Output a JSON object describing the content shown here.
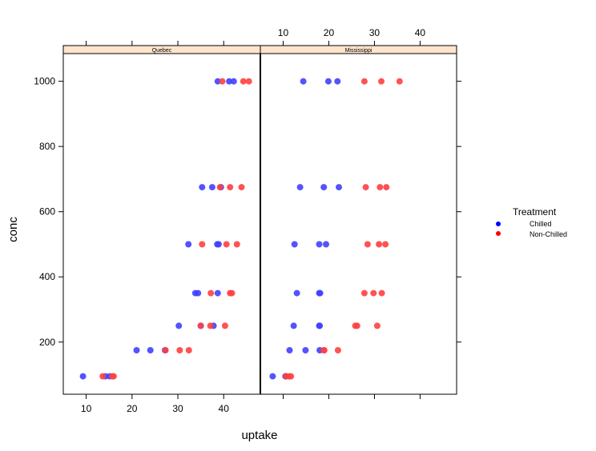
{
  "chart_data": {
    "type": "scatter",
    "xlabel": "uptake",
    "ylabel": "conc",
    "xlim": [
      5,
      48
    ],
    "ylim": [
      40,
      1085
    ],
    "x_ticks": [
      10,
      20,
      30,
      40
    ],
    "y_ticks": [
      200,
      400,
      600,
      800,
      1000
    ],
    "legend": {
      "title": "Treatment",
      "position": "right",
      "entries": [
        {
          "label": "Chilled",
          "color": "#0000FF"
        },
        {
          "label": "Non-Chilled",
          "color": "#FF0000"
        }
      ]
    },
    "series_colors": {
      "Chilled": "#4040FF",
      "Non-Chilled": "#FF4040"
    },
    "panels": [
      {
        "strip": "Quebec",
        "series": [
          {
            "name": "Chilled",
            "points": [
              [
                9.3,
                95
              ],
              [
                14.2,
                95
              ],
              [
                15.1,
                95
              ],
              [
                21.0,
                175
              ],
              [
                24.0,
                175
              ],
              [
                27.2,
                175
              ],
              [
                30.2,
                250
              ],
              [
                35.0,
                250
              ],
              [
                37.8,
                250
              ],
              [
                33.8,
                350
              ],
              [
                34.4,
                350
              ],
              [
                38.7,
                350
              ],
              [
                32.3,
                500
              ],
              [
                38.6,
                500
              ],
              [
                38.9,
                500
              ],
              [
                35.3,
                675
              ],
              [
                37.5,
                675
              ],
              [
                39.4,
                675
              ],
              [
                38.7,
                1000
              ],
              [
                41.2,
                1000
              ],
              [
                42.2,
                1000
              ]
            ]
          },
          {
            "name": "Non-Chilled",
            "points": [
              [
                13.6,
                95
              ],
              [
                15.7,
                95
              ],
              [
                16.0,
                95
              ],
              [
                27.3,
                175
              ],
              [
                30.4,
                175
              ],
              [
                32.4,
                175
              ],
              [
                35.0,
                250
              ],
              [
                37.1,
                250
              ],
              [
                40.3,
                250
              ],
              [
                37.2,
                350
              ],
              [
                41.4,
                350
              ],
              [
                41.8,
                350
              ],
              [
                35.3,
                500
              ],
              [
                40.6,
                500
              ],
              [
                42.9,
                500
              ],
              [
                39.2,
                675
              ],
              [
                41.4,
                675
              ],
              [
                43.9,
                675
              ],
              [
                39.7,
                1000
              ],
              [
                44.3,
                1000
              ],
              [
                45.5,
                1000
              ]
            ]
          }
        ]
      },
      {
        "strip": "Mississippi",
        "series": [
          {
            "name": "Chilled",
            "points": [
              [
                7.7,
                95
              ],
              [
                10.6,
                95
              ],
              [
                10.5,
                95
              ],
              [
                11.4,
                175
              ],
              [
                14.9,
                175
              ],
              [
                18.0,
                175
              ],
              [
                12.3,
                250
              ],
              [
                18.0,
                250
              ],
              [
                17.9,
                250
              ],
              [
                13.0,
                350
              ],
              [
                18.1,
                350
              ],
              [
                17.9,
                350
              ],
              [
                12.5,
                500
              ],
              [
                17.9,
                500
              ],
              [
                19.4,
                500
              ],
              [
                13.7,
                675
              ],
              [
                18.9,
                675
              ],
              [
                22.2,
                675
              ],
              [
                14.4,
                1000
              ],
              [
                19.9,
                1000
              ],
              [
                21.9,
                1000
              ]
            ]
          },
          {
            "name": "Non-Chilled",
            "points": [
              [
                10.6,
                95
              ],
              [
                11.3,
                95
              ],
              [
                11.7,
                95
              ],
              [
                18.9,
                175
              ],
              [
                19.0,
                175
              ],
              [
                22.0,
                175
              ],
              [
                26.2,
                250
              ],
              [
                25.8,
                250
              ],
              [
                30.6,
                250
              ],
              [
                27.8,
                350
              ],
              [
                29.8,
                350
              ],
              [
                31.6,
                350
              ],
              [
                28.5,
                500
              ],
              [
                31.0,
                500
              ],
              [
                32.4,
                500
              ],
              [
                28.1,
                675
              ],
              [
                31.2,
                675
              ],
              [
                32.6,
                675
              ],
              [
                27.8,
                1000
              ],
              [
                31.5,
                1000
              ],
              [
                35.5,
                1000
              ]
            ]
          }
        ]
      }
    ]
  }
}
